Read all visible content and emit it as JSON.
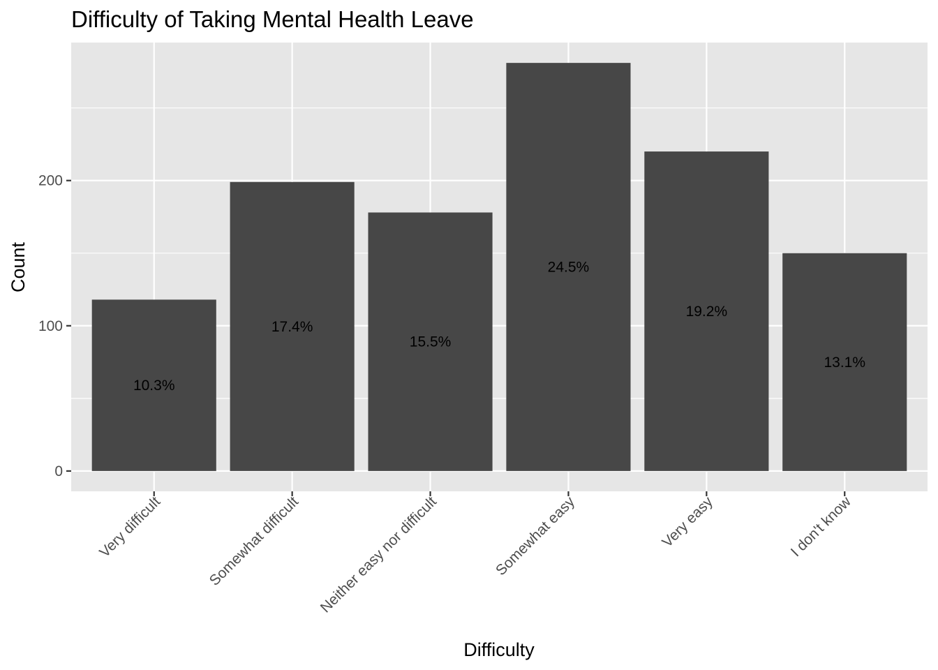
{
  "chart_data": {
    "type": "bar",
    "title": "Difficulty of Taking Mental Health Leave",
    "xlabel": "Difficulty",
    "ylabel": "Count",
    "categories": [
      "Very difficult",
      "Somewhat difficult",
      "Neither easy nor difficult",
      "Somewhat easy",
      "Very easy",
      "I don't know"
    ],
    "values": [
      118,
      199,
      178,
      281,
      220,
      150
    ],
    "data_labels": [
      "10.3%",
      "17.4%",
      "15.5%",
      "24.5%",
      "19.2%",
      "13.1%"
    ],
    "y_ticks": [
      0,
      100,
      200
    ],
    "y_tick_labels": [
      "0",
      "100",
      "200"
    ],
    "ylim": [
      -14,
      295
    ],
    "grid": true,
    "legend": "none",
    "colors": {
      "bar": "#474747",
      "panel": "#e6e6e6",
      "grid": "#ffffff",
      "tick_label": "#4d4d4d",
      "tick": "#333333"
    }
  }
}
